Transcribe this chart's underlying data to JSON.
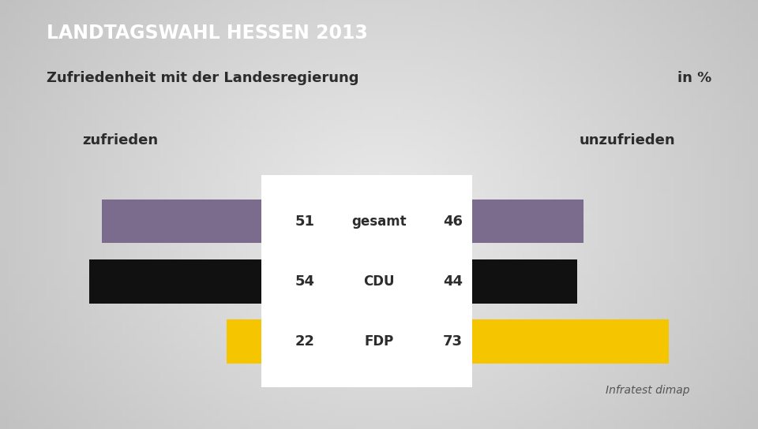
{
  "title": "LANDTAGSWAHL HESSEN 2013",
  "subtitle": "Zufriedenheit mit der Landesregierung",
  "subtitle_right": "in %",
  "label_left": "zufrieden",
  "label_right": "unzufrieden",
  "source": "Infratest dimap",
  "title_bg_color": "#1a3a6b",
  "title_text_color": "#ffffff",
  "subtitle_bg_color": "#f5f5f5",
  "subtitle_text_color": "#2c2c2c",
  "background_color_light": "#d8d8d8",
  "background_color_dark": "#b8b8b8",
  "chart_bg_color": "#ebebeb",
  "categories": [
    "gesamt",
    "CDU",
    "FDP"
  ],
  "zufrieden_values": [
    51,
    54,
    22
  ],
  "unzufrieden_values": [
    46,
    44,
    73
  ],
  "bar_colors": [
    "#7b6b8d",
    "#111111",
    "#f5c500"
  ],
  "bar_height": 0.52,
  "title_fontsize": 17,
  "subtitle_fontsize": 13,
  "label_fontsize": 13,
  "value_fontsize": 13,
  "cat_fontsize": 12
}
